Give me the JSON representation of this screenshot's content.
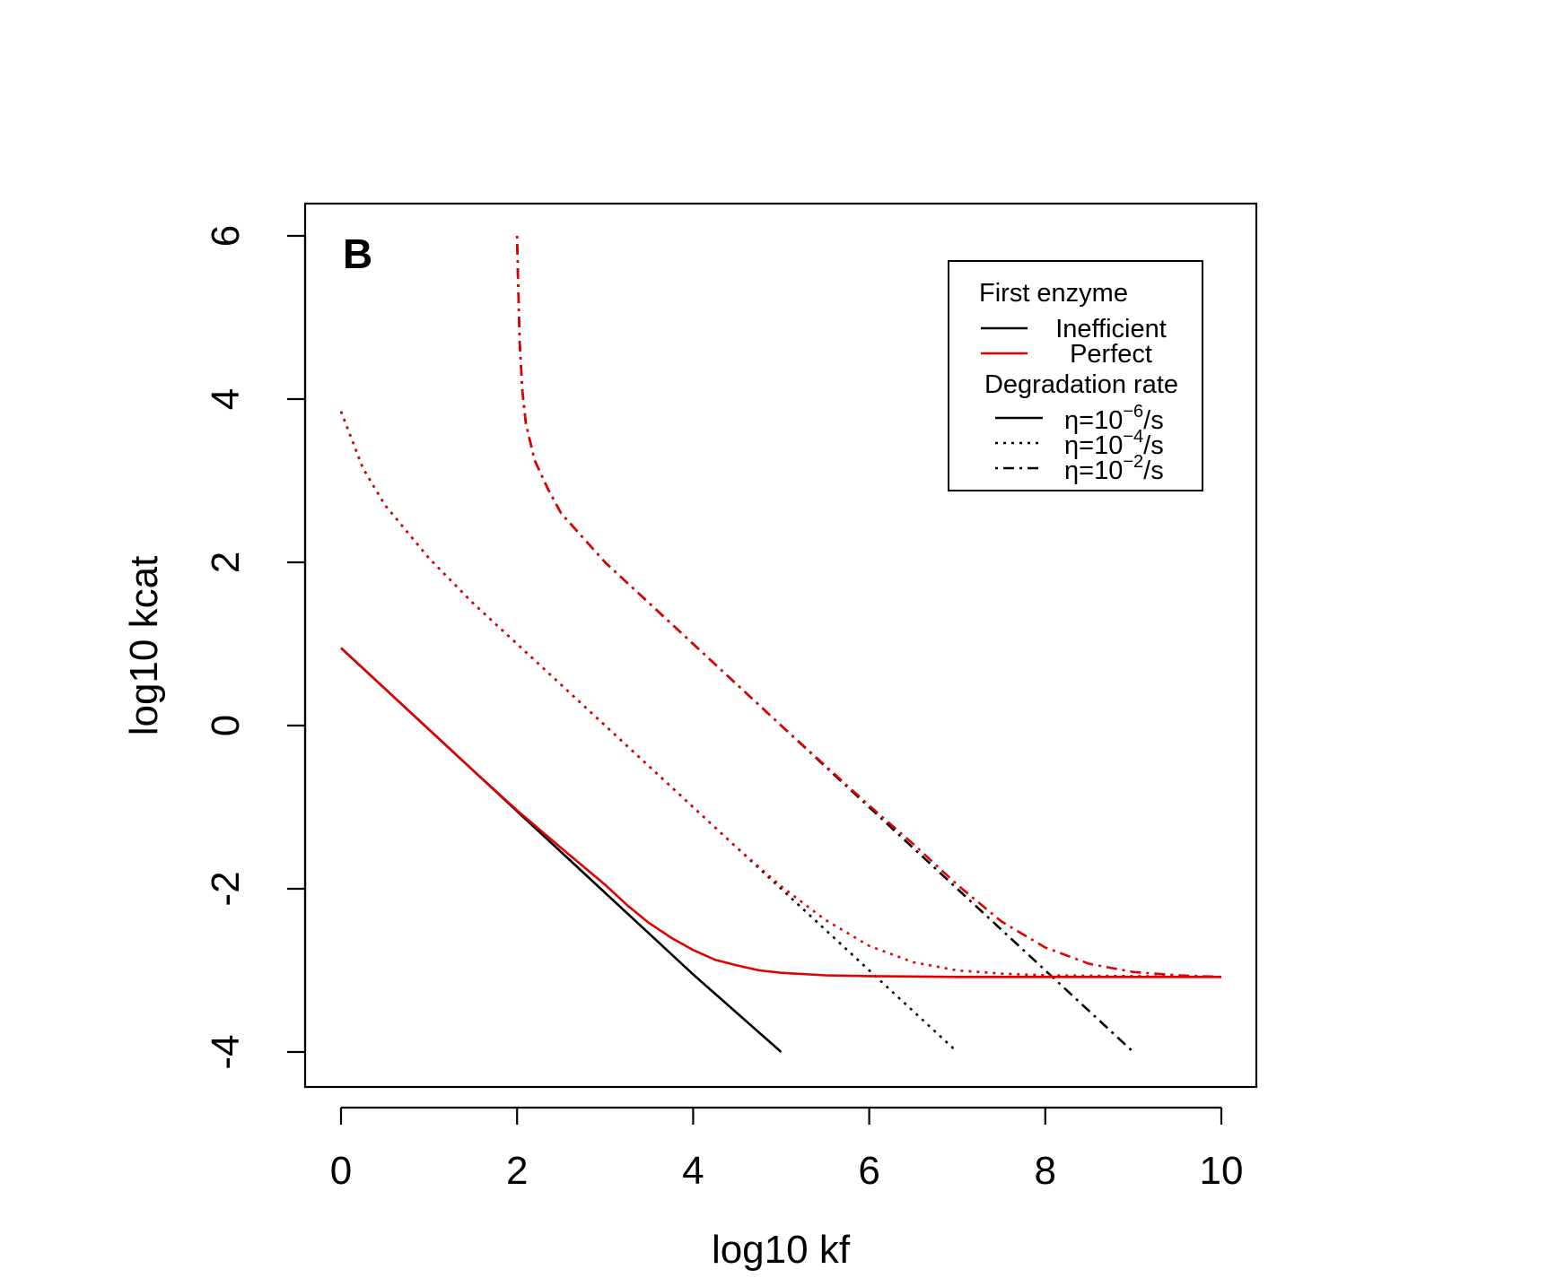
{
  "chart_data": {
    "type": "line",
    "panel_label": "B",
    "xlabel": "log10 kf",
    "ylabel": "log10 kcat",
    "xlim": [
      0,
      10
    ],
    "ylim": [
      -4,
      6
    ],
    "x_ticks": [
      0,
      2,
      4,
      6,
      8,
      10
    ],
    "y_ticks": [
      -4,
      -2,
      0,
      2,
      4,
      6
    ],
    "grid": false,
    "legend": {
      "placement": "top-right",
      "title_1": "First enzyme",
      "color_entries": [
        {
          "label": "Inefficient",
          "color": "#000000"
        },
        {
          "label": "Perfect",
          "color": "#e00000"
        }
      ],
      "title_2": "Degradation rate",
      "style_entries": [
        {
          "symbol": "η",
          "base": "=10",
          "exponent": "−6",
          "unit": "/s",
          "dash": "solid"
        },
        {
          "symbol": "η",
          "base": "=10",
          "exponent": "−4",
          "unit": "/s",
          "dash": "dotted"
        },
        {
          "symbol": "η",
          "base": "=10",
          "exponent": "−2",
          "unit": "/s",
          "dash": "dashdot"
        }
      ]
    },
    "series": [
      {
        "enzyme": "Inefficient",
        "eta": "1e-6",
        "color": "#000000",
        "dash": "solid",
        "x": [
          0,
          1,
          2,
          3,
          4,
          5
        ],
        "y": [
          0.95,
          -0.05,
          -1.05,
          -2.05,
          -3.05,
          -4.0
        ]
      },
      {
        "enzyme": "Perfect",
        "eta": "1e-6",
        "color": "#e00000",
        "dash": "solid",
        "x": [
          0,
          0.5,
          1,
          1.5,
          2,
          2.5,
          3,
          3.25,
          3.5,
          3.75,
          4,
          4.25,
          4.5,
          4.75,
          5,
          5.5,
          6,
          7,
          8,
          9,
          10
        ],
        "y": [
          0.95,
          0.45,
          -0.05,
          -0.55,
          -1.04,
          -1.5,
          -1.95,
          -2.2,
          -2.42,
          -2.6,
          -2.75,
          -2.87,
          -2.94,
          -3.0,
          -3.03,
          -3.06,
          -3.07,
          -3.08,
          -3.08,
          -3.08,
          -3.08
        ]
      },
      {
        "enzyme": "Inefficient",
        "eta": "1e-4",
        "color": "#000000",
        "dash": "dotted",
        "x": [
          0,
          0.25,
          0.5,
          1,
          1.5,
          2,
          3,
          4,
          5,
          6,
          7
        ],
        "y": [
          3.85,
          3.15,
          2.7,
          2.05,
          1.5,
          1.0,
          0.0,
          -1.0,
          -2.0,
          -3.0,
          -4.0
        ]
      },
      {
        "enzyme": "Perfect",
        "eta": "1e-4",
        "color": "#e00000",
        "dash": "dotted",
        "x": [
          0,
          0.25,
          0.5,
          1,
          1.5,
          2,
          3,
          4,
          4.5,
          5,
          5.5,
          6,
          6.5,
          7,
          7.5,
          8,
          9,
          10
        ],
        "y": [
          3.85,
          3.15,
          2.7,
          2.05,
          1.5,
          1.0,
          0.0,
          -1.0,
          -1.5,
          -1.97,
          -2.38,
          -2.7,
          -2.9,
          -3.0,
          -3.04,
          -3.06,
          -3.07,
          -3.08
        ]
      },
      {
        "enzyme": "Inefficient",
        "eta": "1e-2",
        "color": "#000000",
        "dash": "dashdot",
        "x": [
          2,
          2.01,
          2.03,
          2.06,
          2.1,
          2.2,
          2.35,
          2.5,
          2.75,
          3,
          4,
          5,
          6,
          7,
          8,
          9
        ],
        "y": [
          6,
          5.5,
          4.7,
          4.1,
          3.7,
          3.25,
          2.9,
          2.6,
          2.3,
          2.0,
          1.0,
          0.0,
          -1.0,
          -2.0,
          -3.0,
          -4.0
        ]
      },
      {
        "enzyme": "Perfect",
        "eta": "1e-2",
        "color": "#e00000",
        "dash": "dashdot",
        "x": [
          2,
          2.01,
          2.03,
          2.06,
          2.1,
          2.2,
          2.35,
          2.5,
          2.75,
          3,
          4,
          5,
          6,
          6.5,
          7,
          7.5,
          8,
          8.5,
          9,
          9.5,
          10
        ],
        "y": [
          6,
          5.5,
          4.7,
          4.1,
          3.7,
          3.25,
          2.9,
          2.6,
          2.3,
          2.0,
          1.0,
          0.0,
          -0.98,
          -1.45,
          -1.95,
          -2.4,
          -2.72,
          -2.92,
          -3.02,
          -3.06,
          -3.08
        ]
      }
    ]
  }
}
